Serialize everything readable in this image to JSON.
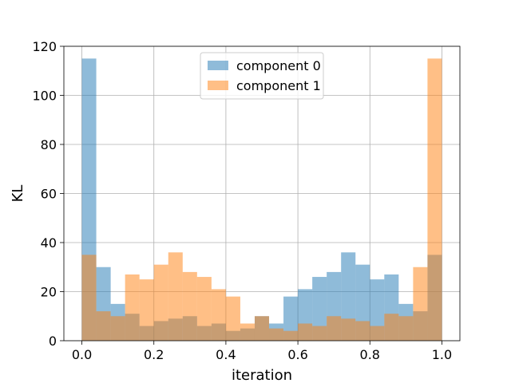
{
  "chart_data": {
    "type": "bar",
    "xlabel": "iteration",
    "ylabel": "KL",
    "xlim": [
      -0.05,
      1.05
    ],
    "ylim": [
      0,
      120
    ],
    "xticks": [
      0.0,
      0.2,
      0.4,
      0.6,
      0.8,
      1.0
    ],
    "xtick_labels": [
      "0.0",
      "0.2",
      "0.4",
      "0.6",
      "0.8",
      "1.0"
    ],
    "yticks": [
      0,
      20,
      40,
      60,
      80,
      100,
      120
    ],
    "ytick_labels": [
      "0",
      "20",
      "40",
      "60",
      "80",
      "100",
      "120"
    ],
    "grid": true,
    "legend_position": "top-center",
    "bin_edges": [
      0.0,
      0.04,
      0.08,
      0.12,
      0.16,
      0.2,
      0.24,
      0.28,
      0.32,
      0.36,
      0.4,
      0.44,
      0.48,
      0.52,
      0.56,
      0.6,
      0.64,
      0.68,
      0.72,
      0.76,
      0.8,
      0.84,
      0.88,
      0.92,
      0.96,
      1.0
    ],
    "series": [
      {
        "name": "component 0",
        "color": "#1f77b4",
        "alpha": 0.5,
        "values": [
          115,
          30,
          15,
          11,
          6,
          8,
          9,
          10,
          6,
          7,
          4,
          5,
          10,
          7,
          18,
          21,
          26,
          28,
          36,
          31,
          25,
          27,
          15,
          12,
          35
        ]
      },
      {
        "name": "component 1",
        "color": "#ff7f0e",
        "alpha": 0.5,
        "values": [
          35,
          12,
          10,
          27,
          25,
          31,
          36,
          28,
          26,
          21,
          18,
          7,
          10,
          5,
          4,
          7,
          6,
          10,
          9,
          8,
          6,
          11,
          10,
          30,
          115
        ]
      }
    ]
  }
}
